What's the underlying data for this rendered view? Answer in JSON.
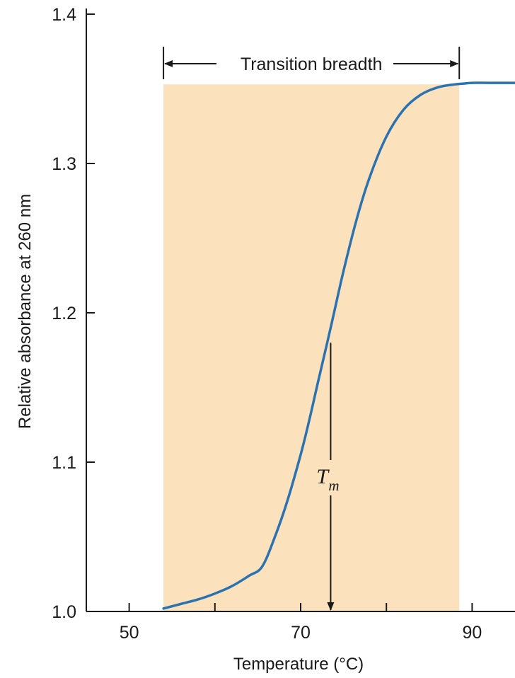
{
  "chart_data": {
    "type": "line",
    "title": "",
    "xlabel": "Temperature (°C)",
    "ylabel": "Relative absorbance at 260 nm",
    "xlim": [
      45,
      95
    ],
    "ylim": [
      1.0,
      1.4
    ],
    "x_ticks": [
      50,
      60,
      70,
      80,
      90
    ],
    "x_tick_labels": [
      "50",
      "",
      "70",
      "",
      "90"
    ],
    "y_ticks": [
      1.0,
      1.1,
      1.2,
      1.3,
      1.4
    ],
    "y_tick_labels": [
      "1.0",
      "1.1",
      "1.2",
      "1.3",
      "1.4"
    ],
    "grid": false,
    "series": [
      {
        "color": "#2b72b0",
        "x": [
          54,
          56,
          58,
          60,
          62,
          64,
          65.5,
          67,
          68.5,
          70,
          71,
          72,
          73.5,
          75,
          76.5,
          78,
          80,
          82,
          84,
          86,
          88,
          89,
          90,
          92,
          95
        ],
        "y": [
          1.002,
          1.005,
          1.008,
          1.012,
          1.017,
          1.024,
          1.03,
          1.05,
          1.075,
          1.105,
          1.128,
          1.153,
          1.19,
          1.228,
          1.262,
          1.29,
          1.318,
          1.336,
          1.346,
          1.351,
          1.353,
          1.3535,
          1.354,
          1.354,
          1.354
        ]
      }
    ],
    "highlight_band": {
      "x_start": 54,
      "x_end": 88.5,
      "y_top": 1.353,
      "color": "#fbe2bd"
    },
    "annotations": {
      "transition_label": "Transition breadth",
      "tm_label": "T",
      "tm_subscript": "m",
      "tm_x": 73.5,
      "tm_y": 1.18
    }
  }
}
